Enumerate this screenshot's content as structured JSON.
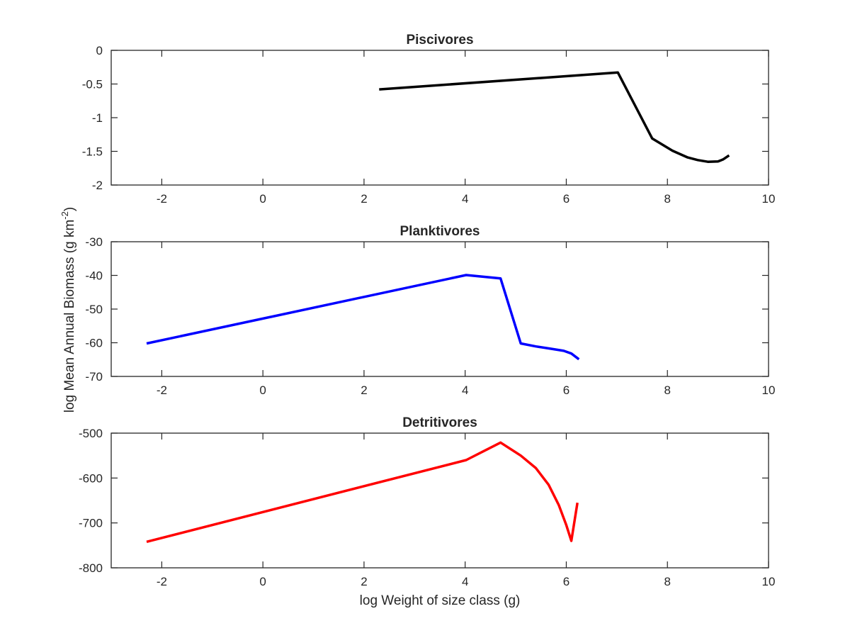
{
  "figure": {
    "ylabel": "log Mean Annual Biomass (g km",
    "ylabel_sup": "-2",
    "ylabel_end": ")",
    "xlabel": "log Weight of size class (g)"
  },
  "chart_data": [
    {
      "type": "line",
      "title": "Piscivores",
      "xlim": [
        -3,
        10
      ],
      "ylim": [
        -2,
        0
      ],
      "xticks": [
        -2,
        0,
        2,
        4,
        6,
        8,
        10
      ],
      "yticks": [
        0,
        -0.5,
        -1,
        -1.5,
        -2
      ],
      "grid": false,
      "series": [
        {
          "color": "#000000",
          "x": [
            2.3,
            7.02,
            7.7,
            8.1,
            8.4,
            8.6,
            8.8,
            9.0,
            9.1,
            9.22
          ],
          "y": [
            -0.58,
            -0.33,
            -1.31,
            -1.49,
            -1.59,
            -1.63,
            -1.655,
            -1.65,
            -1.62,
            -1.56
          ]
        }
      ]
    },
    {
      "type": "line",
      "title": "Planktivores",
      "xlim": [
        -3,
        10
      ],
      "ylim": [
        -70,
        -30
      ],
      "xticks": [
        -2,
        0,
        2,
        4,
        6,
        8,
        10
      ],
      "yticks": [
        -30,
        -40,
        -50,
        -60,
        -70
      ],
      "grid": false,
      "series": [
        {
          "color": "#0000ff",
          "x": [
            -2.3,
            4.02,
            4.7,
            5.1,
            5.4,
            5.7,
            5.95,
            6.1,
            6.25
          ],
          "y": [
            -60.2,
            -39.9,
            -40.9,
            -60.2,
            -61.1,
            -61.8,
            -62.4,
            -63.2,
            -64.9
          ]
        }
      ]
    },
    {
      "type": "line",
      "title": "Detritivores",
      "xlim": [
        -3,
        10
      ],
      "ylim": [
        -800,
        -500
      ],
      "xticks": [
        -2,
        0,
        2,
        4,
        6,
        8,
        10
      ],
      "yticks": [
        -500,
        -600,
        -700,
        -800
      ],
      "grid": false,
      "series": [
        {
          "color": "#ff0000",
          "x": [
            -2.3,
            4.02,
            4.7,
            5.1,
            5.4,
            5.65,
            5.85,
            6.0,
            6.1,
            6.22
          ],
          "y": [
            -742,
            -560,
            -521,
            -550,
            -578,
            -615,
            -660,
            -705,
            -740,
            -655
          ]
        }
      ]
    }
  ]
}
